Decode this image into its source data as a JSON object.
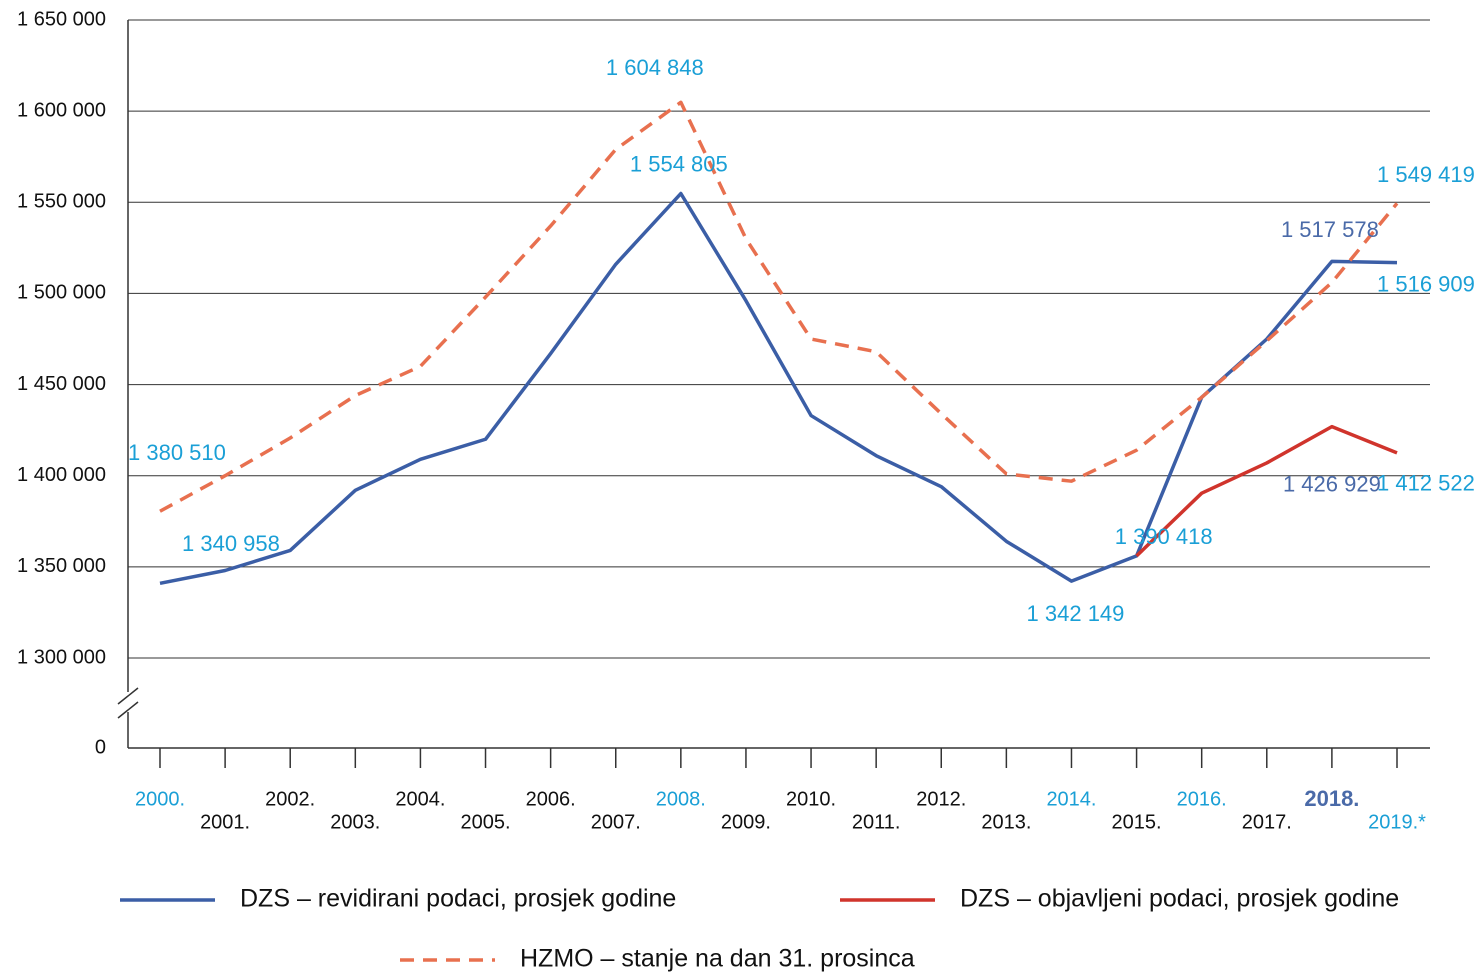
{
  "chart_data": {
    "type": "line",
    "categories": [
      "2000.",
      "2001.",
      "2002.",
      "2003.",
      "2004.",
      "2005.",
      "2006.",
      "2007.",
      "2008.",
      "2009.",
      "2010.",
      "2011.",
      "2012.",
      "2013.",
      "2014.",
      "2015.",
      "2016.",
      "2017.",
      "2018.",
      "2019.*"
    ],
    "category_label_colors": [
      "#1a9fd6",
      "#111111",
      "#111111",
      "#111111",
      "#111111",
      "#111111",
      "#111111",
      "#111111",
      "#1a9fd6",
      "#111111",
      "#111111",
      "#111111",
      "#111111",
      "#111111",
      "#1a9fd6",
      "#111111",
      "#1a9fd6",
      "#111111",
      "#4a6aa8",
      "#1a9fd6"
    ],
    "series": [
      {
        "name": "DZS – revidirani podaci, prosjek godine",
        "color": "#3b5ea6",
        "dashed": false,
        "values": [
          1340958,
          1348000,
          1359000,
          1392000,
          1409000,
          1420000,
          1467000,
          1516000,
          1554805,
          1496000,
          1433000,
          1411000,
          1394000,
          1364000,
          1342149,
          1356000,
          1443000,
          1475000,
          1517578,
          1516909
        ],
        "value_labels": [
          "1 340 958",
          null,
          null,
          null,
          null,
          null,
          null,
          null,
          "1 554 805",
          null,
          null,
          null,
          null,
          null,
          "1 342 149",
          null,
          null,
          null,
          "1 517 578",
          "1 516 909"
        ],
        "value_label_colors": [
          "#1a9fd6",
          null,
          null,
          null,
          null,
          null,
          null,
          null,
          "#1a9fd6",
          null,
          null,
          null,
          null,
          null,
          "#1a9fd6",
          null,
          null,
          null,
          "#4a6aa8",
          "#1a9fd6"
        ]
      },
      {
        "name": "DZS – objavljeni podaci, prosjek godine",
        "color": "#d0342c",
        "dashed": false,
        "values": [
          null,
          null,
          null,
          null,
          null,
          null,
          null,
          null,
          null,
          null,
          null,
          null,
          null,
          null,
          null,
          1356000,
          1390418,
          1407000,
          1426929,
          1412522
        ],
        "value_labels": [
          null,
          null,
          null,
          null,
          null,
          null,
          null,
          null,
          null,
          null,
          null,
          null,
          null,
          null,
          null,
          null,
          "1 390 418",
          null,
          "1 426 929",
          "1 412 522"
        ],
        "value_label_colors": [
          null,
          null,
          null,
          null,
          null,
          null,
          null,
          null,
          null,
          null,
          null,
          null,
          null,
          null,
          null,
          null,
          "#1a9fd6",
          null,
          "#4a6aa8",
          "#1a9fd6"
        ]
      },
      {
        "name": "HZMO – stanje na dan 31. prosinca",
        "color": "#e8704f",
        "dashed": true,
        "values": [
          1380510,
          1400000,
          1420700,
          1444000,
          1460000,
          1498000,
          1537000,
          1579000,
          1604848,
          1530000,
          1475000,
          1468000,
          1434000,
          1401000,
          1397000,
          1414000,
          1443000,
          1474000,
          1506000,
          1549419
        ],
        "value_labels": [
          "1 380 510",
          null,
          null,
          null,
          null,
          null,
          null,
          null,
          "1 604 848",
          null,
          null,
          null,
          null,
          null,
          null,
          null,
          null,
          null,
          null,
          "1 549 419"
        ],
        "value_label_colors": [
          "#1a9fd6",
          null,
          null,
          null,
          null,
          null,
          null,
          null,
          "#1a9fd6",
          null,
          null,
          null,
          null,
          null,
          null,
          null,
          null,
          null,
          null,
          "#1a9fd6"
        ]
      }
    ],
    "ylim": [
      1300000,
      1650000
    ],
    "axis_break": true,
    "yticks": [
      0,
      {
        "value": 1300000,
        "label": "1 300 000"
      },
      {
        "value": 1350000,
        "label": "1 350 000"
      },
      {
        "value": 1400000,
        "label": "1 400 000"
      },
      {
        "value": 1450000,
        "label": "1 450 000"
      },
      {
        "value": 1500000,
        "label": "1 500 000"
      },
      {
        "value": 1550000,
        "label": "1 550 000"
      },
      {
        "value": 1600000,
        "label": "1 600 000"
      },
      {
        "value": 1650000,
        "label": "1 650 000"
      }
    ],
    "grid": true
  }
}
